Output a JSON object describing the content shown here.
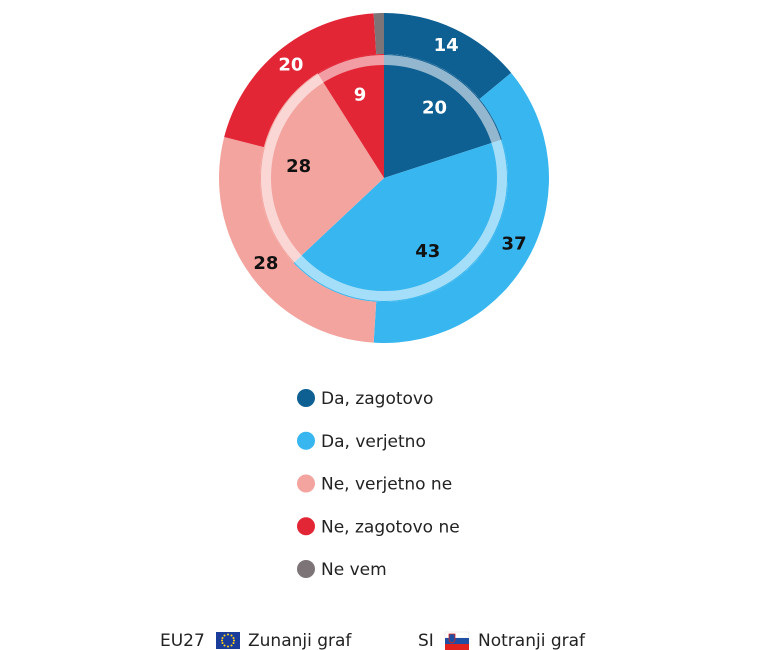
{
  "chart_data": {
    "type": "pie",
    "categories": [
      "Da, zagotovo",
      "Da, verjetno",
      "Ne, verjetno ne",
      "Ne, zagotovo ne",
      "Ne vem"
    ],
    "colors": [
      "#0e5f92",
      "#38b6ef",
      "#f4a49f",
      "#e32636",
      "#7d7477"
    ],
    "label_colors": [
      "#ffffff",
      "#111111",
      "#111111",
      "#ffffff",
      "#ffffff"
    ],
    "series": [
      {
        "name": "EU27",
        "description": "Zunanji graf",
        "values": [
          14,
          37,
          28,
          20,
          1
        ]
      },
      {
        "name": "SI",
        "description": "Notranji graf",
        "values": [
          20,
          43,
          28,
          9,
          0
        ]
      }
    ]
  }
}
